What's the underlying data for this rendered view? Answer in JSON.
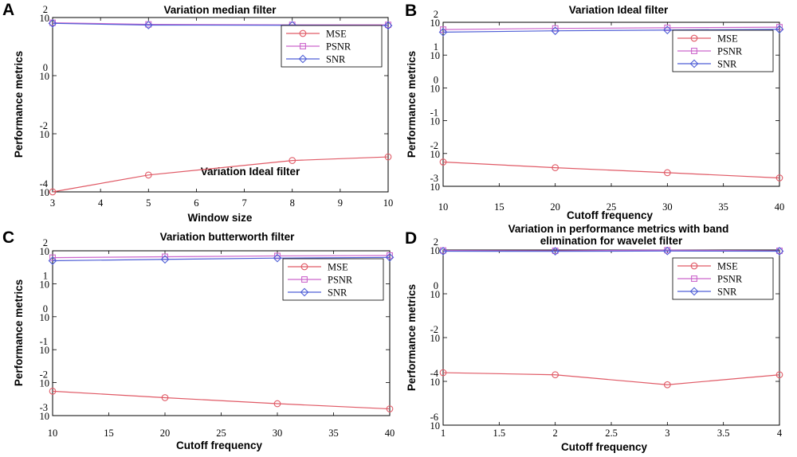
{
  "colors": {
    "mse": "#e05a66",
    "psnr": "#cc66cc",
    "snr": "#4f5fd6",
    "axis": "#000000"
  },
  "chart_data": [
    {
      "letter": "A",
      "type": "line",
      "title": "Variation median filter",
      "extra_text": "Variation Ideal filter",
      "xlabel": "Window size",
      "ylabel": "Performance metrics",
      "yscale": "log",
      "xlim": [
        3,
        10
      ],
      "ylim": [
        0.0001,
        100
      ],
      "x_ticks": [
        3,
        4,
        5,
        6,
        7,
        8,
        9,
        10
      ],
      "x_tick_labels": [
        "3",
        "4",
        "5",
        "6",
        "7",
        "8",
        "9",
        "10"
      ],
      "y_ticks": [
        {
          "value": 100,
          "base": "10",
          "exp": "2"
        },
        {
          "value": 1,
          "base": "10",
          "exp": "0"
        },
        {
          "value": 0.01,
          "base": "10",
          "exp": "-2"
        },
        {
          "value": 0.0001,
          "base": "10",
          "exp": "-4"
        }
      ],
      "legend": "top-right",
      "x": [
        3,
        5,
        8,
        10
      ],
      "series": [
        {
          "name": "MSE",
          "marker": "circle",
          "values": [
            0.0001,
            0.00038,
            0.0012,
            0.0016
          ]
        },
        {
          "name": "PSNR",
          "marker": "square",
          "values": [
            66,
            58,
            56,
            56
          ]
        },
        {
          "name": "SNR",
          "marker": "diamond",
          "values": [
            63,
            55,
            54,
            53
          ]
        }
      ]
    },
    {
      "letter": "B",
      "type": "line",
      "title": "Variation Ideal filter",
      "xlabel": "Cutoff frequency",
      "ylabel": "Performance metrics",
      "yscale": "log",
      "xlim": [
        10,
        40
      ],
      "ylim": [
        0.001,
        100
      ],
      "x_ticks": [
        10,
        15,
        20,
        25,
        30,
        35,
        40
      ],
      "x_tick_labels": [
        "10",
        "15",
        "20",
        "25",
        "30",
        "35",
        "40"
      ],
      "y_ticks": [
        {
          "value": 100,
          "base": "10",
          "exp": "2"
        },
        {
          "value": 10,
          "base": "10",
          "exp": "1"
        },
        {
          "value": 1,
          "base": "10",
          "exp": "0"
        },
        {
          "value": 0.1,
          "base": "10",
          "exp": "-1"
        },
        {
          "value": 0.01,
          "base": "10",
          "exp": "-2"
        },
        {
          "value": 0.001,
          "base": "10",
          "exp": "-3"
        }
      ],
      "legend": "top-right",
      "x": [
        10,
        20,
        30,
        40
      ],
      "series": [
        {
          "name": "MSE",
          "marker": "circle",
          "values": [
            0.0055,
            0.0037,
            0.0026,
            0.0018
          ]
        },
        {
          "name": "PSNR",
          "marker": "square",
          "values": [
            60,
            65,
            68,
            71
          ]
        },
        {
          "name": "SNR",
          "marker": "diamond",
          "values": [
            50,
            55,
            58,
            61
          ]
        }
      ]
    },
    {
      "letter": "C",
      "type": "line",
      "title": "Variation butterworth filter",
      "xlabel": "Cutoff frequency",
      "ylabel": "Performance metrics",
      "yscale": "log",
      "xlim": [
        10,
        40
      ],
      "ylim": [
        0.001,
        100
      ],
      "x_ticks": [
        10,
        15,
        20,
        25,
        30,
        35,
        40
      ],
      "x_tick_labels": [
        "10",
        "15",
        "20",
        "25",
        "30",
        "35",
        "40"
      ],
      "y_ticks": [
        {
          "value": 100,
          "base": "10",
          "exp": "2"
        },
        {
          "value": 10,
          "base": "10",
          "exp": "1"
        },
        {
          "value": 1,
          "base": "10",
          "exp": "0"
        },
        {
          "value": 0.1,
          "base": "10",
          "exp": "-1"
        },
        {
          "value": 0.01,
          "base": "10",
          "exp": "-2"
        },
        {
          "value": 0.001,
          "base": "10",
          "exp": "-3"
        }
      ],
      "legend": "top-right",
      "x": [
        10,
        20,
        30,
        40
      ],
      "series": [
        {
          "name": "MSE",
          "marker": "circle",
          "values": [
            0.0055,
            0.0035,
            0.0023,
            0.0016
          ]
        },
        {
          "name": "PSNR",
          "marker": "square",
          "values": [
            62,
            66,
            70,
            72
          ]
        },
        {
          "name": "SNR",
          "marker": "diamond",
          "values": [
            50,
            55,
            60,
            63
          ]
        }
      ]
    },
    {
      "letter": "D",
      "type": "line",
      "title_lines": [
        "Variation in performance metrics with band",
        "elimination for wavelet filter"
      ],
      "xlabel": "Cutoff frequency",
      "ylabel": "Performance metrics",
      "yscale": "log",
      "xlim": [
        1,
        4
      ],
      "ylim": [
        1e-06,
        100
      ],
      "x_ticks": [
        1,
        1.5,
        2,
        2.5,
        3,
        3.5,
        4
      ],
      "x_tick_labels": [
        "1",
        "1.5",
        "2",
        "2.5",
        "3",
        "3.5",
        "4"
      ],
      "y_ticks": [
        {
          "value": 100,
          "base": "10",
          "exp": "2"
        },
        {
          "value": 1,
          "base": "10",
          "exp": "0"
        },
        {
          "value": 0.01,
          "base": "10",
          "exp": "-2"
        },
        {
          "value": 0.0001,
          "base": "10",
          "exp": "-4"
        },
        {
          "value": 1e-06,
          "base": "10",
          "exp": "-6"
        }
      ],
      "legend": "top-right",
      "x": [
        1,
        2,
        3,
        4
      ],
      "series": [
        {
          "name": "MSE",
          "marker": "circle",
          "values": [
            0.00025,
            0.0002,
            7e-05,
            0.0002
          ]
        },
        {
          "name": "PSNR",
          "marker": "square",
          "values": [
            95,
            92,
            98,
            92
          ]
        },
        {
          "name": "SNR",
          "marker": "diamond",
          "values": [
            88,
            87,
            90,
            88
          ]
        }
      ]
    }
  ]
}
